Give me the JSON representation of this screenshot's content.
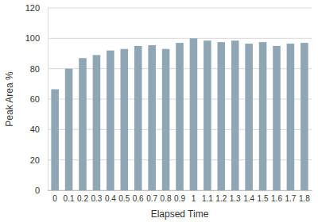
{
  "chart_data": {
    "type": "bar",
    "x_label": "Elapsed Time",
    "y_label": "Peak Area %",
    "categories": [
      "0",
      "0.1",
      "0.2",
      "0.3",
      "0.4",
      "0.5",
      "0.6",
      "0.7",
      "0.8",
      "0.9",
      "1",
      "1.1",
      "1.2",
      "1.3",
      "1.4",
      "1.5",
      "1.6",
      "1.7",
      "1.8"
    ],
    "values": [
      66.5,
      80,
      87,
      89,
      92,
      93,
      95,
      95.5,
      93,
      97,
      100,
      98.5,
      97.5,
      98.5,
      96.5,
      97.5,
      95,
      96.5,
      97
    ],
    "color": "#8fa7b5",
    "ylim": [
      0,
      120
    ],
    "yticks": [
      0,
      20,
      40,
      60,
      80,
      100,
      120
    ],
    "grid": true
  }
}
